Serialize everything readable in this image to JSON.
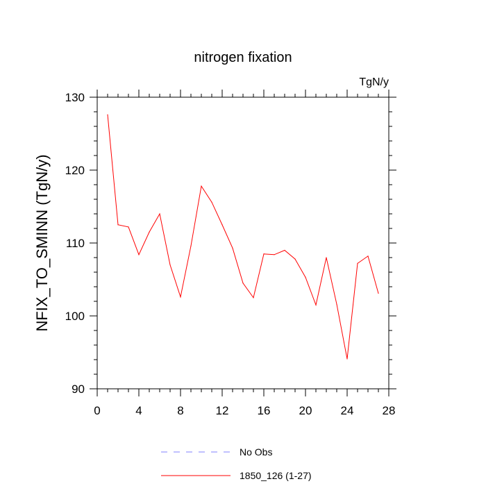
{
  "chart_data": {
    "type": "line",
    "title": "nitrogen fixation",
    "units_label": "TgN/y",
    "xlabel": "",
    "ylabel": "NFIX_TO_SMINN  (TgN/y)",
    "xlim": [
      0,
      28
    ],
    "ylim": [
      90,
      130
    ],
    "x_ticks": [
      "0",
      "4",
      "8",
      "12",
      "16",
      "20",
      "24",
      "28"
    ],
    "y_ticks": [
      "90",
      "100",
      "110",
      "120",
      "130"
    ],
    "series": [
      {
        "name": "1850_126 (1-27)",
        "color": "#ff0000",
        "x": [
          1,
          2,
          3,
          4,
          5,
          6,
          7,
          8,
          9,
          10,
          11,
          12,
          13,
          14,
          15,
          16,
          17,
          18,
          19,
          20,
          21,
          22,
          23,
          24,
          25,
          26,
          27
        ],
        "values": [
          127.6,
          112.5,
          112.2,
          108.4,
          111.5,
          114.0,
          107.0,
          102.6,
          109.6,
          117.8,
          115.6,
          112.5,
          109.3,
          104.5,
          102.5,
          108.5,
          108.4,
          109.0,
          107.8,
          105.3,
          101.5,
          108.0,
          101.6,
          94.1,
          107.2,
          108.2,
          103.1
        ]
      }
    ],
    "legend": [
      {
        "label": "No Obs",
        "color": "#8080ff",
        "style": "dashed"
      },
      {
        "label": "1850_126 (1-27)",
        "color": "#ff0000",
        "style": "solid"
      }
    ]
  }
}
